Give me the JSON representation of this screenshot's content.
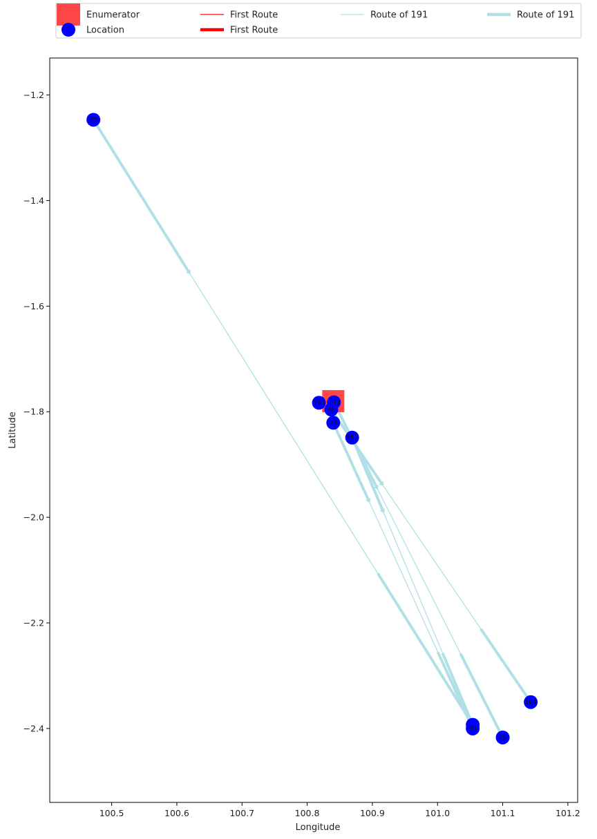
{
  "chart_data": {
    "type": "scatter",
    "title": "",
    "xlabel": "Longitude",
    "ylabel": "Latitude",
    "xlim": [
      100.405,
      101.215
    ],
    "ylim": [
      -2.54,
      -1.13
    ],
    "x_ticks": [
      100.5,
      100.6,
      100.7,
      100.8,
      100.9,
      101.0,
      101.1,
      101.2
    ],
    "x_tick_labels": [
      "100.5",
      "100.6",
      "100.7",
      "100.8",
      "100.9",
      "101.0",
      "101.1",
      "101.2"
    ],
    "y_ticks": [
      -1.2,
      -1.4,
      -1.6,
      -1.8,
      -2.0,
      -2.2,
      -2.4
    ],
    "y_tick_labels": [
      "−1.2",
      "−1.4",
      "−1.6",
      "−1.8",
      "−2.0",
      "−2.2",
      "−2.4"
    ],
    "grid": false,
    "legend": {
      "placement": "top",
      "entries": [
        {
          "label": "Enumerator",
          "kind": "square",
          "color": "#ff3333"
        },
        {
          "label": "Location",
          "kind": "circle",
          "color": "#0000ff"
        },
        {
          "label": "First Route",
          "kind": "thin-line",
          "color": "#ff0000"
        },
        {
          "label": "First Route",
          "kind": "thick-line",
          "color": "#ff0000"
        },
        {
          "label": "Route of 191",
          "kind": "thin-line",
          "color": "#b0e0e6"
        },
        {
          "label": "Route of 191",
          "kind": "thick-line",
          "color": "#b0e0e6"
        }
      ]
    },
    "enumerator": {
      "x": 100.84,
      "y": -1.78,
      "color": "#ff3333"
    },
    "locations": [
      {
        "x": 100.472,
        "y": -1.247,
        "label": "33"
      },
      {
        "x": 100.818,
        "y": -1.783,
        "label": "103"
      },
      {
        "x": 100.841,
        "y": -1.782,
        "label": "190"
      },
      {
        "x": 100.837,
        "y": -1.796,
        "label": "36"
      },
      {
        "x": 100.84,
        "y": -1.821,
        "label": "73"
      },
      {
        "x": 100.869,
        "y": -1.849,
        "label": "159"
      },
      {
        "x": 101.054,
        "y": -2.393,
        "label": "84"
      },
      {
        "x": 101.054,
        "y": -2.4,
        "label": "35"
      },
      {
        "x": 101.1,
        "y": -2.417,
        "label": "75"
      },
      {
        "x": 101.143,
        "y": -2.35,
        "label": "164"
      }
    ],
    "routes": [
      {
        "from": [
          100.472,
          -1.247
        ],
        "to": [
          101.054,
          -2.393
        ]
      },
      {
        "from": [
          100.84,
          -1.821
        ],
        "to": [
          101.054,
          -2.4
        ]
      },
      {
        "from": [
          100.841,
          -1.782
        ],
        "to": [
          101.1,
          -2.417
        ]
      },
      {
        "from": [
          100.869,
          -1.849
        ],
        "to": [
          101.054,
          -2.393
        ]
      },
      {
        "from": [
          100.837,
          -1.796
        ],
        "to": [
          101.143,
          -2.35
        ]
      }
    ],
    "route_color": "#b0e0e6",
    "location_color": "#0000ff"
  }
}
